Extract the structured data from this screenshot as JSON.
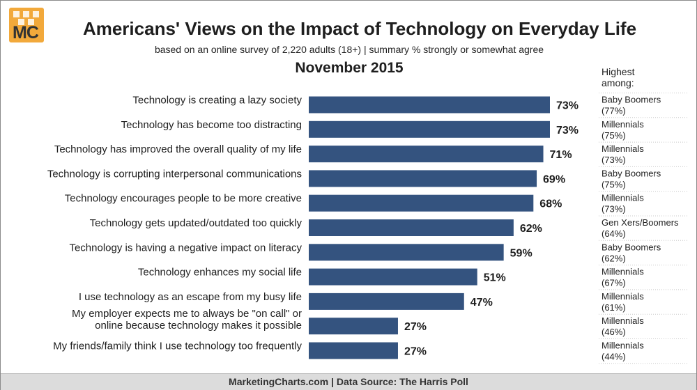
{
  "logo_text": "MC",
  "title": "Americans' Views on the Impact of Technology on Everyday Life",
  "subtitle": "based on an online survey of 2,220 adults (18+) | summary % strongly or somewhat agree",
  "date": "November 2015",
  "highest_header": "Highest\namong:",
  "footer": "MarketingCharts.com | Data Source: The Harris Poll",
  "colors": {
    "bar": "#34537f",
    "logo": "#f2a93b",
    "footer_bg": "#dcdcdc"
  },
  "chart_data": {
    "type": "bar",
    "orientation": "horizontal",
    "value_format": "percent",
    "xlim": [
      0,
      100
    ],
    "grid": false,
    "categories": [
      "Technology is creating a lazy society",
      "Technology has become too distracting",
      "Technology has improved the overall quality of my life",
      "Technology is corrupting interpersonal communications",
      "Technology encourages people to be more creative",
      "Technology gets updated/outdated too quickly",
      "Technology is having a negative impact on literacy",
      "Technology enhances my social life",
      "I use technology as an escape from my busy life",
      "My employer expects me to always be \"on call\" or online because technology makes it possible",
      "My friends/family think I use technology too frequently"
    ],
    "category_lines": [
      [
        "Technology is creating a lazy society"
      ],
      [
        "Technology has become too distracting"
      ],
      [
        "Technology has improved the overall quality of my life"
      ],
      [
        "Technology is corrupting interpersonal communications"
      ],
      [
        "Technology encourages people to be more creative"
      ],
      [
        "Technology gets updated/outdated too quickly"
      ],
      [
        "Technology is having a negative impact on literacy"
      ],
      [
        "Technology enhances my social life"
      ],
      [
        "I use technology as an escape from my busy life"
      ],
      [
        "My employer expects me to always be \"on call\" or",
        "online because technology makes it possible"
      ],
      [
        "My friends/family think I use technology too frequently"
      ]
    ],
    "values": [
      73,
      73,
      71,
      69,
      68,
      62,
      59,
      51,
      47,
      27,
      27
    ],
    "data_labels": [
      "73%",
      "73%",
      "71%",
      "69%",
      "68%",
      "62%",
      "59%",
      "51%",
      "47%",
      "27%",
      "27%"
    ],
    "highest_among": [
      {
        "group": "Baby Boomers",
        "value": "(77%)"
      },
      {
        "group": "Millennials",
        "value": "(75%)"
      },
      {
        "group": "Millennials",
        "value": "(73%)"
      },
      {
        "group": "Baby Boomers",
        "value": "(75%)"
      },
      {
        "group": "Millennials",
        "value": "(73%)"
      },
      {
        "group": "Gen Xers/Boomers",
        "value": "(64%)"
      },
      {
        "group": "Baby Boomers",
        "value": "(62%)"
      },
      {
        "group": "Millennials",
        "value": "(67%)"
      },
      {
        "group": "Millennials",
        "value": "(61%)"
      },
      {
        "group": "Millennials",
        "value": "(46%)"
      },
      {
        "group": "Millennials",
        "value": "(44%)"
      }
    ]
  }
}
